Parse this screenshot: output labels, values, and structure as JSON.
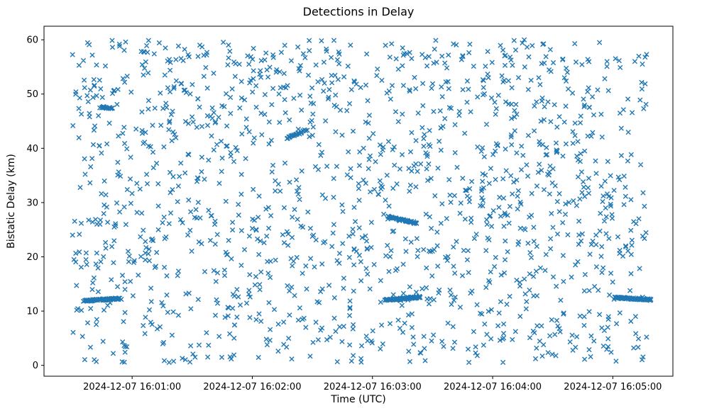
{
  "chart_data": {
    "type": "scatter",
    "title": "Detections in Delay",
    "xlabel": "Time (UTC)",
    "ylabel": "Bistatic Delay (km)",
    "marker": "x",
    "marker_color": "#1f77b4",
    "background_color": "#ffffff",
    "legend": "none",
    "grid": false,
    "x_axis": {
      "type": "time",
      "reference": "2024-12-07 16:00:00",
      "xlim_seconds": [
        16,
        330
      ],
      "ticks": [
        {
          "seconds": 60,
          "label": "2024-12-07 16:01:00"
        },
        {
          "seconds": 120,
          "label": "2024-12-07 16:02:00"
        },
        {
          "seconds": 180,
          "label": "2024-12-07 16:03:00"
        },
        {
          "seconds": 240,
          "label": "2024-12-07 16:04:00"
        },
        {
          "seconds": 300,
          "label": "2024-12-07 16:05:00"
        }
      ]
    },
    "y_axis": {
      "ylim": [
        -2,
        62.5
      ],
      "ticks": [
        0,
        10,
        20,
        30,
        40,
        50,
        60
      ]
    },
    "noise_cloud": {
      "description": "uniform random clutter detections across the full window",
      "count": 1500,
      "seed": 20241207,
      "x_range_seconds": [
        30,
        317
      ],
      "y_range_km": [
        0.5,
        60
      ]
    },
    "dense_tracks": [
      {
        "name": "track-low-early",
        "x_start_s": 36,
        "x_end_s": 54,
        "y_start_km": 11.9,
        "y_end_km": 12.3,
        "count": 75
      },
      {
        "name": "track-high-early",
        "x_start_s": 44,
        "x_end_s": 50,
        "y_start_km": 47.6,
        "y_end_km": 47.4,
        "count": 16
      },
      {
        "name": "track-mid-rise",
        "x_start_s": 137,
        "x_end_s": 147,
        "y_start_km": 41.8,
        "y_end_km": 43.4,
        "count": 24
      },
      {
        "name": "track-low-mid",
        "x_start_s": 186,
        "x_end_s": 204,
        "y_start_km": 12.0,
        "y_end_km": 12.6,
        "count": 75
      },
      {
        "name": "track-26km-mid",
        "x_start_s": 188,
        "x_end_s": 202,
        "y_start_km": 27.4,
        "y_end_km": 26.2,
        "count": 45
      },
      {
        "name": "track-low-late",
        "x_start_s": 301,
        "x_end_s": 319,
        "y_start_km": 12.5,
        "y_end_km": 12.1,
        "count": 65
      }
    ]
  }
}
